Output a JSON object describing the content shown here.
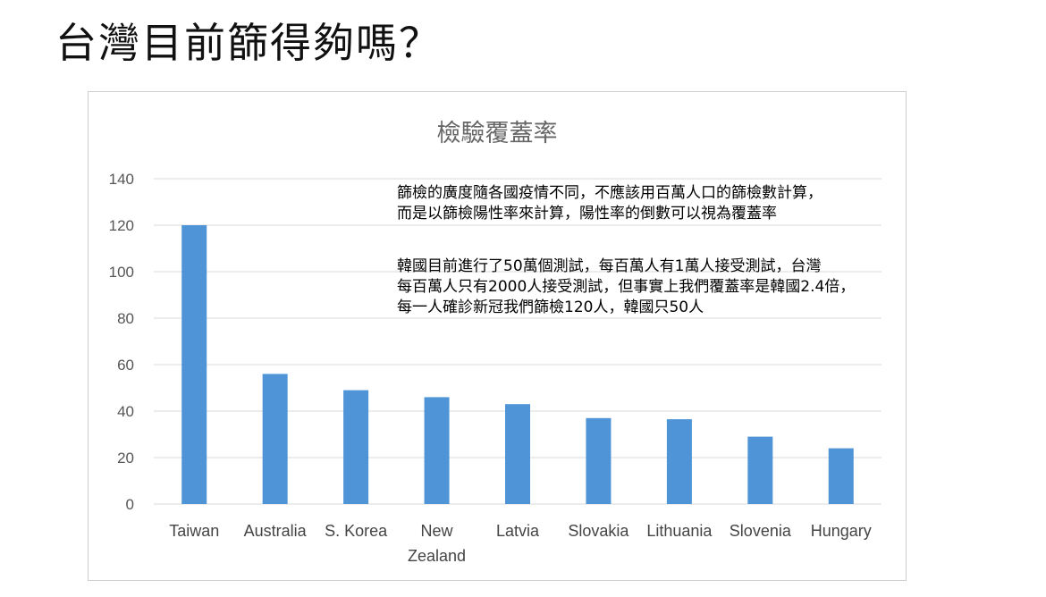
{
  "slide": {
    "title": "台灣目前篩得夠嗎？"
  },
  "annotations": {
    "paragraph1": [
      "篩檢的廣度隨各國疫情不同，不應該用百萬人口的篩檢數計算，",
      "而是以篩檢陽性率來計算，陽性率的倒數可以視為覆蓋率"
    ],
    "paragraph2": [
      "韓國目前進行了50萬個測試，每百萬人有1萬人接受測試，台灣",
      "每百萬人只有2000人接受測試，但事實上我們覆蓋率是韓國2.4倍，",
      "每一人確診新冠我們篩檢120人，韓國只50人"
    ]
  },
  "chart_data": {
    "type": "bar",
    "title": "檢驗覆蓋率",
    "categories": [
      "Taiwan",
      "Australia",
      "S. Korea",
      "New Zealand",
      "Latvia",
      "Slovakia",
      "Lithuania",
      "Slovenia",
      "Hungary"
    ],
    "category_lines": [
      [
        "Taiwan"
      ],
      [
        "Australia"
      ],
      [
        "S. Korea"
      ],
      [
        "New",
        "Zealand"
      ],
      [
        "Latvia"
      ],
      [
        "Slovakia"
      ],
      [
        "Lithuania"
      ],
      [
        "Slovenia"
      ],
      [
        "Hungary"
      ]
    ],
    "values": [
      120,
      56,
      49,
      46,
      43,
      37,
      36.5,
      29,
      24
    ],
    "ylim": [
      0,
      140
    ],
    "yticks": [
      0,
      20,
      40,
      60,
      80,
      100,
      120,
      140
    ],
    "xlabel": "",
    "ylabel": "",
    "grid": true,
    "legend": "none",
    "bar_color": "#4e94d6",
    "grid_color": "#d9d9d9"
  }
}
